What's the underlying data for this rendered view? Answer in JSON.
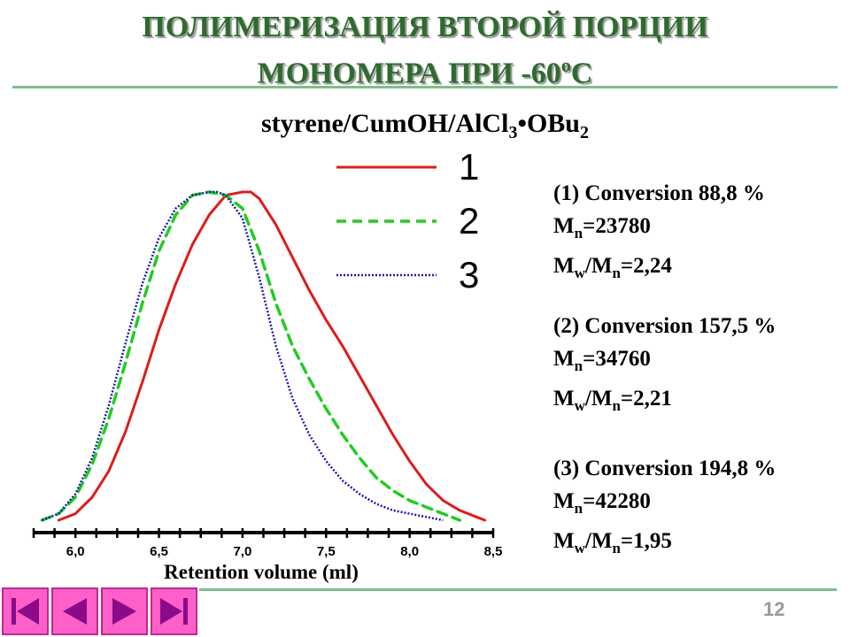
{
  "slide": {
    "title_line1": "ПОЛИМЕРИЗАЦИЯ ВТОРОЙ ПОРЦИИ",
    "title_line2_main": "МОНОМЕРА ПРИ -60",
    "title_line2_sup": "o",
    "title_line2_end": "C",
    "subtitle_a": "styrene/CumOH/AlCl",
    "subtitle_sub1": "3",
    "subtitle_b": "•OBu",
    "subtitle_sub2": "2",
    "page_number": "12"
  },
  "info": [
    {
      "conversion": "(1) Conversion 88,8 %",
      "mn_label": "M",
      "mn_sub": "n",
      "mn_value": "=23780",
      "mw_label": "M",
      "mw_sub": "w",
      "mwmn_slash": "/M",
      "mwmn_sub": "n",
      "mwmn_value": "=2,24"
    },
    {
      "conversion": "(2) Conversion 157,5 %",
      "mn_label": "M",
      "mn_sub": "n",
      "mn_value": "=34760",
      "mw_label": "M",
      "mw_sub": "w",
      "mwmn_slash": "/M",
      "mwmn_sub": "n",
      "mwmn_value": "=2,21"
    },
    {
      "conversion": "(3) Conversion 194,8 %",
      "mn_label": "M",
      "mn_sub": "n",
      "mn_value": "=42280",
      "mw_label": "M",
      "mw_sub": "w",
      "mwmn_slash": "/M",
      "mwmn_sub": "n",
      "mwmn_value": "=1,95"
    }
  ],
  "navigation": {
    "icons": [
      "first-slide-icon",
      "previous-slide-icon",
      "next-slide-icon",
      "last-slide-icon"
    ]
  },
  "colors": {
    "title": "#2e6b2e",
    "series1": "#dd1c1c",
    "series2": "#22cc22",
    "series3": "#1a1aaa",
    "nav": "#ff5fc8"
  },
  "chart_data": {
    "type": "line",
    "xlabel": "Retention volume (ml)",
    "ylabel": "",
    "xlim": [
      5.75,
      8.5
    ],
    "ylim": [
      0,
      1.0
    ],
    "x_ticks": [
      "6,0",
      "6,5",
      "7,0",
      "7,5",
      "8,0",
      "8,5"
    ],
    "x_tick_values": [
      6.0,
      6.5,
      7.0,
      7.5,
      8.0,
      8.5
    ],
    "legend_position": "top-center",
    "series": [
      {
        "name": "1",
        "style": "solid",
        "x": [
          5.9,
          6.0,
          6.1,
          6.2,
          6.3,
          6.4,
          6.5,
          6.6,
          6.7,
          6.8,
          6.9,
          7.0,
          7.05,
          7.1,
          7.2,
          7.3,
          7.4,
          7.5,
          7.6,
          7.7,
          7.8,
          7.9,
          8.0,
          8.1,
          8.2,
          8.3,
          8.4,
          8.45
        ],
        "y": [
          0.0,
          0.02,
          0.07,
          0.15,
          0.27,
          0.42,
          0.58,
          0.72,
          0.84,
          0.93,
          0.99,
          1.0,
          1.0,
          0.98,
          0.9,
          0.8,
          0.7,
          0.61,
          0.53,
          0.44,
          0.35,
          0.26,
          0.18,
          0.11,
          0.06,
          0.03,
          0.01,
          0.0
        ]
      },
      {
        "name": "2",
        "style": "dashed",
        "x": [
          5.8,
          5.9,
          6.0,
          6.1,
          6.2,
          6.3,
          6.4,
          6.5,
          6.6,
          6.7,
          6.8,
          6.9,
          7.0,
          7.1,
          7.2,
          7.3,
          7.4,
          7.5,
          7.6,
          7.7,
          7.8,
          7.9,
          8.0,
          8.1,
          8.2,
          8.3
        ],
        "y": [
          0.0,
          0.02,
          0.07,
          0.17,
          0.31,
          0.48,
          0.66,
          0.82,
          0.93,
          0.99,
          1.0,
          0.99,
          0.95,
          0.82,
          0.66,
          0.53,
          0.43,
          0.34,
          0.26,
          0.19,
          0.13,
          0.09,
          0.06,
          0.04,
          0.02,
          0.0
        ]
      },
      {
        "name": "3",
        "style": "dotted",
        "x": [
          5.8,
          5.9,
          6.0,
          6.1,
          6.2,
          6.3,
          6.4,
          6.5,
          6.6,
          6.7,
          6.8,
          6.85,
          6.9,
          7.0,
          7.1,
          7.2,
          7.3,
          7.4,
          7.5,
          7.6,
          7.7,
          7.8,
          7.9,
          8.0,
          8.1,
          8.2
        ],
        "y": [
          0.0,
          0.02,
          0.08,
          0.19,
          0.35,
          0.54,
          0.72,
          0.86,
          0.95,
          0.99,
          1.0,
          1.0,
          0.99,
          0.92,
          0.74,
          0.53,
          0.37,
          0.26,
          0.18,
          0.12,
          0.08,
          0.05,
          0.03,
          0.02,
          0.01,
          0.0
        ]
      }
    ]
  }
}
